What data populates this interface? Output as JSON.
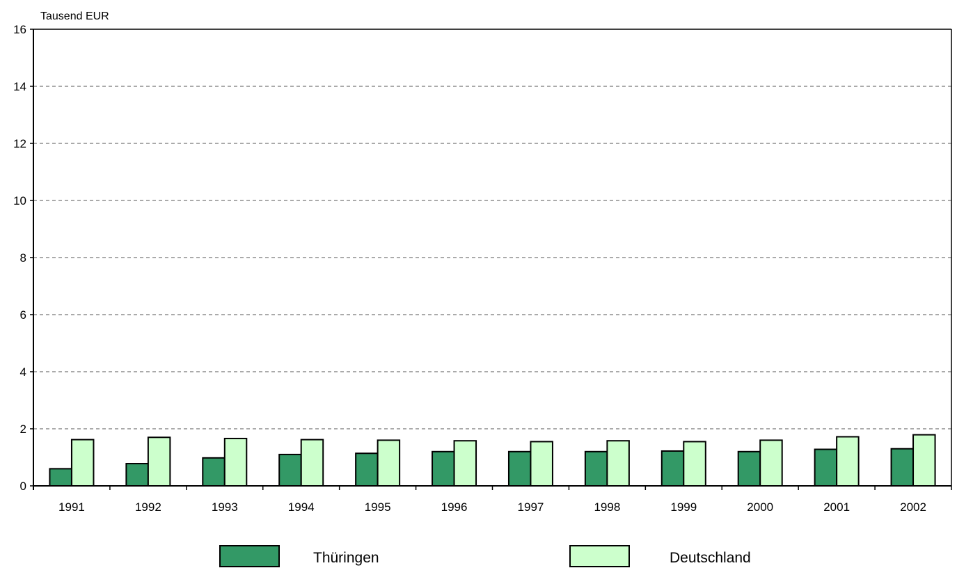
{
  "chart_data": {
    "type": "bar",
    "unit_label": "Tausend EUR",
    "categories": [
      "1991",
      "1992",
      "1993",
      "1994",
      "1995",
      "1996",
      "1997",
      "1998",
      "1999",
      "2000",
      "2001",
      "2002"
    ],
    "series": [
      {
        "name": "Thüringen",
        "color": "#339966",
        "values": [
          0.6,
          0.78,
          0.98,
          1.1,
          1.14,
          1.2,
          1.2,
          1.2,
          1.22,
          1.2,
          1.28,
          1.3
        ]
      },
      {
        "name": "Deutschland",
        "color": "#ccffcc",
        "values": [
          1.62,
          1.7,
          1.66,
          1.62,
          1.6,
          1.58,
          1.55,
          1.58,
          1.55,
          1.6,
          1.72,
          1.79
        ]
      }
    ],
    "ylim": [
      0,
      16
    ],
    "yticks": [
      "0",
      "2",
      "4",
      "6",
      "8",
      "10",
      "12",
      "14",
      "16"
    ],
    "grid": true,
    "legend_position": "bottom"
  }
}
